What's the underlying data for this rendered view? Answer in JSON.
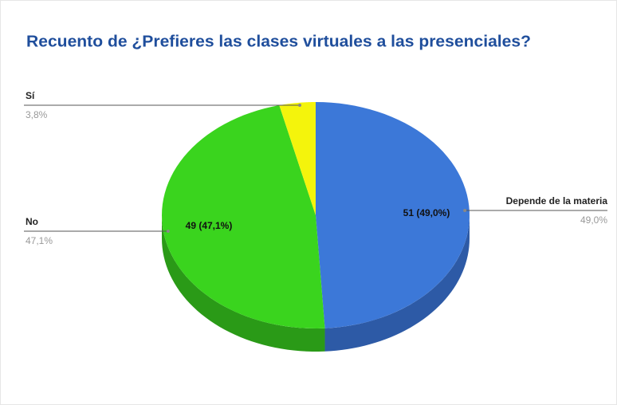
{
  "chart_data": {
    "type": "pie",
    "title": "Recuento de ¿Prefieres las clases virtuales a las presenciales?",
    "categories": [
      "Depende de la materia",
      "No",
      "Sí"
    ],
    "values": [
      49.0,
      47.1,
      3.8
    ],
    "value_labels": [
      "49,0%",
      "47,1%",
      "3,8%"
    ],
    "slice_labels": [
      "51 (49,0%)",
      "49 (47,1%)",
      null
    ],
    "colors": [
      "#3c78d8",
      "#3ad41e",
      "#f4f40c"
    ],
    "side_colors": [
      "#2d5aa6",
      "#2a9a17",
      "#b8b808"
    ]
  }
}
